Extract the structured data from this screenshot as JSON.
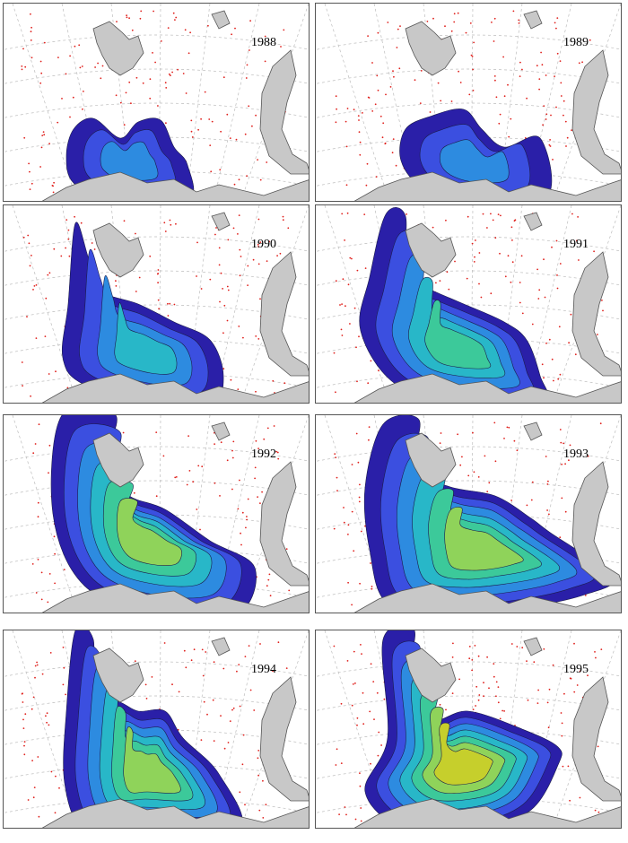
{
  "panels": [
    {
      "year": "1988",
      "extent": 1,
      "shape": "A"
    },
    {
      "year": "1989",
      "extent": 1,
      "shape": "B"
    },
    {
      "year": "1990",
      "extent": 2,
      "shape": "C"
    },
    {
      "year": "1991",
      "extent": 3,
      "shape": "D"
    },
    {
      "year": "1992",
      "extent": 4,
      "shape": "E"
    },
    {
      "year": "1993",
      "extent": 4,
      "shape": "F"
    },
    {
      "year": "1994",
      "extent": 4,
      "shape": "G"
    },
    {
      "year": "1995",
      "extent": 5,
      "shape": "H"
    }
  ],
  "colors": {
    "land": "#c8c8c8",
    "land_edge": "#555555",
    "graticule": "#bdbdbd",
    "stations": "#e0201c",
    "levels": [
      "#2a1fa8",
      "#3b4fe0",
      "#2d8be0",
      "#28b7c8",
      "#3cc99a",
      "#8fd35a",
      "#c6cf2c"
    ]
  }
}
